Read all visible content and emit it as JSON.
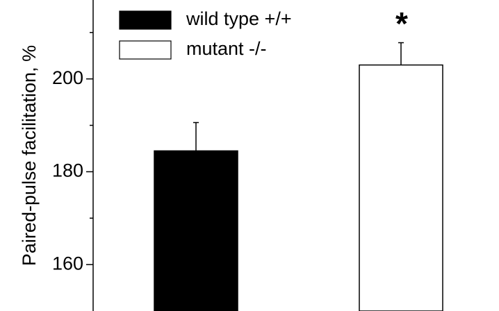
{
  "chart_data": {
    "type": "bar",
    "y_label": "Paired-pulse facilitation, %",
    "categories": [
      null
    ],
    "series": [
      {
        "name": "wild type +/+",
        "color": "#000000",
        "values": [
          184.5
        ],
        "errors": [
          6.1
        ]
      },
      {
        "name": "mutant -/-",
        "color": "#ffffff",
        "values": [
          203
        ],
        "errors": [
          4.8
        ]
      }
    ],
    "annotation": "*",
    "ylim": [
      150,
      217
    ],
    "yticks": [
      160,
      180,
      200
    ],
    "minor_yticks": [
      170,
      190,
      210
    ],
    "grid": false
  }
}
